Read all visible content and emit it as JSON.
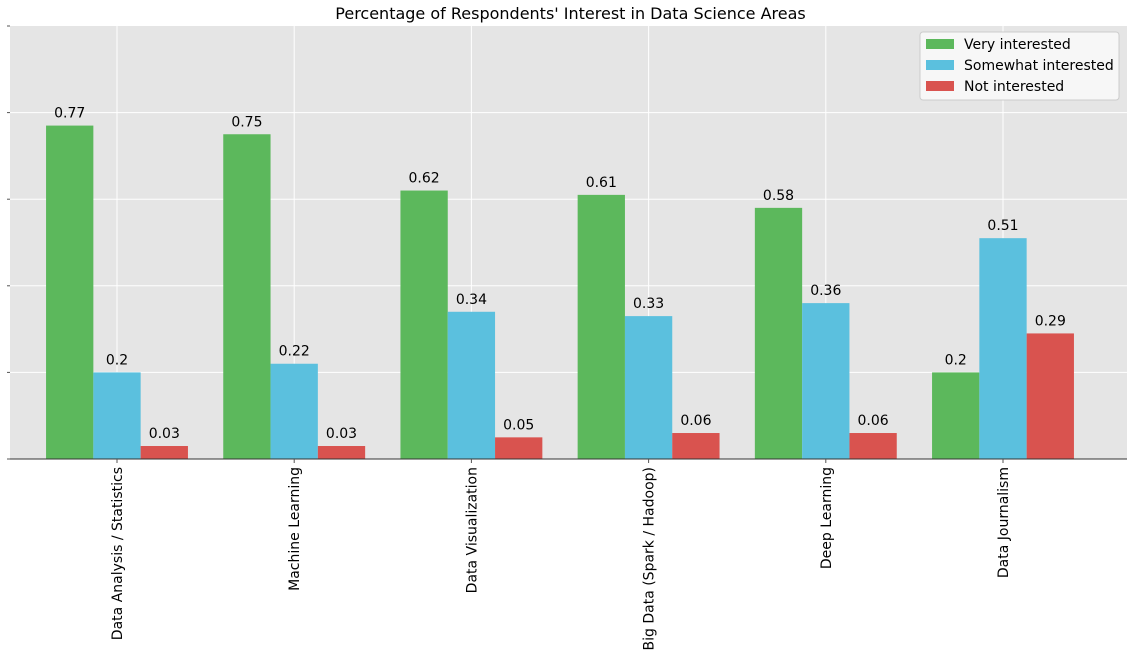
{
  "chart_data": {
    "type": "bar",
    "title": "Percentage of Respondents' Interest in Data Science Areas",
    "xlabel": "",
    "ylabel": "",
    "ylim": [
      0,
      1.0
    ],
    "y_tick_labels_visible": false,
    "grid": true,
    "legend_position": "top-right",
    "categories": [
      "Data Analysis / Statistics",
      "Machine Learning",
      "Data Visualization",
      "Big Data (Spark / Hadoop)",
      "Deep Learning",
      "Data Journalism"
    ],
    "series": [
      {
        "name": "Very interested",
        "color": "#5cb85c",
        "values": [
          0.77,
          0.75,
          0.62,
          0.61,
          0.58,
          0.2
        ]
      },
      {
        "name": "Somewhat interested",
        "color": "#5bc0de",
        "values": [
          0.2,
          0.22,
          0.34,
          0.33,
          0.36,
          0.51
        ]
      },
      {
        "name": "Not interested",
        "color": "#d9534f",
        "values": [
          0.03,
          0.03,
          0.05,
          0.06,
          0.06,
          0.29
        ]
      }
    ]
  }
}
